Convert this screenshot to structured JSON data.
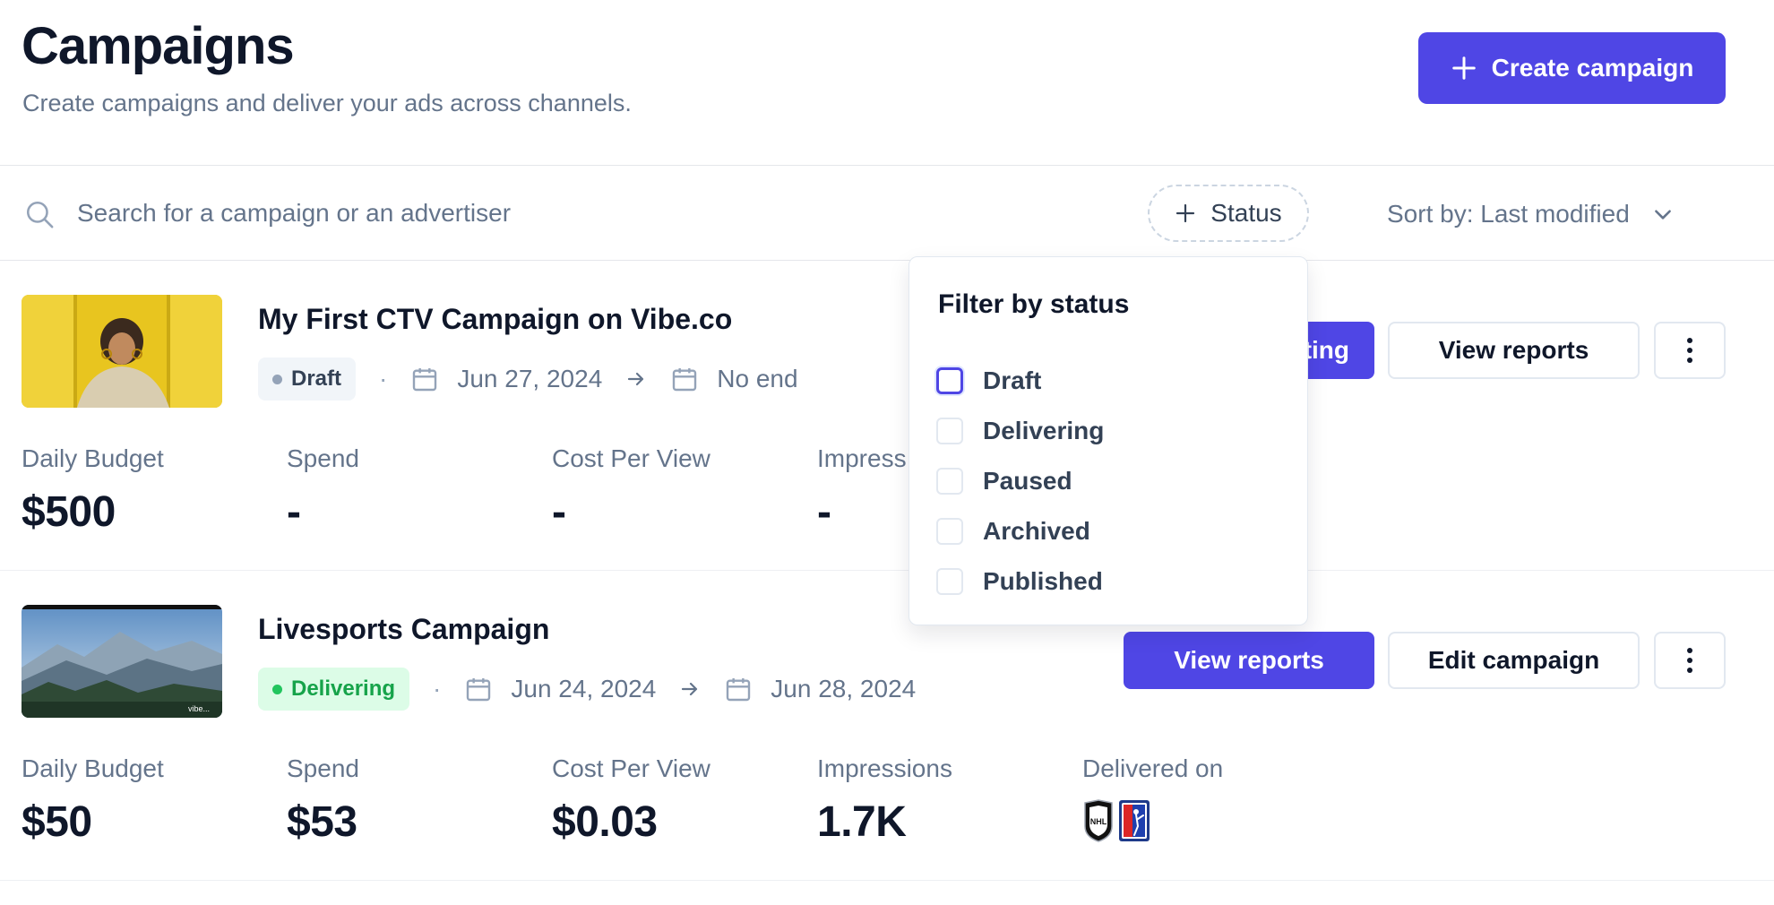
{
  "header": {
    "title": "Campaigns",
    "subtitle": "Create campaigns and deliver your ads across channels.",
    "create_label": "Create campaign"
  },
  "toolbar": {
    "search_placeholder": "Search for a campaign or an advertiser",
    "status_filter_label": "Status",
    "sort_label": "Sort by: Last modified"
  },
  "status_filter": {
    "title": "Filter by status",
    "options": [
      {
        "label": "Draft",
        "checked": false
      },
      {
        "label": "Delivering",
        "checked": false
      },
      {
        "label": "Paused",
        "checked": false
      },
      {
        "label": "Archived",
        "checked": false
      },
      {
        "label": "Published",
        "checked": false
      }
    ]
  },
  "campaigns": [
    {
      "name": "My First CTV Campaign on Vibe.co",
      "status": "Draft",
      "start_date": "Jun 27, 2024",
      "end_date": "No end",
      "primary_action_partial": "ting",
      "secondary_action": "View reports",
      "stats": [
        {
          "label": "Daily Budget",
          "value": "$500"
        },
        {
          "label": "Spend",
          "value": "-"
        },
        {
          "label": "Cost Per View",
          "value": "-"
        },
        {
          "label": "Impress",
          "value": "-"
        }
      ]
    },
    {
      "name": "Livesports Campaign",
      "status": "Delivering",
      "start_date": "Jun 24, 2024",
      "end_date": "Jun 28, 2024",
      "primary_action": "View reports",
      "secondary_action": "Edit campaign",
      "stats": [
        {
          "label": "Daily Budget",
          "value": "$50"
        },
        {
          "label": "Spend",
          "value": "$53"
        },
        {
          "label": "Cost Per View",
          "value": "$0.03"
        },
        {
          "label": "Impressions",
          "value": "1.7K"
        }
      ],
      "delivered_on_label": "Delivered on",
      "delivered_on_logos": [
        "nhl-logo",
        "pga-tour-logo"
      ],
      "thumbnail_watermark": "vibe..."
    }
  ],
  "colors": {
    "accent": "#4f46e5",
    "text_primary": "#0f172a",
    "text_muted": "#64748b",
    "delivering_bg": "#dcfce7",
    "delivering_fg": "#16a34a"
  }
}
